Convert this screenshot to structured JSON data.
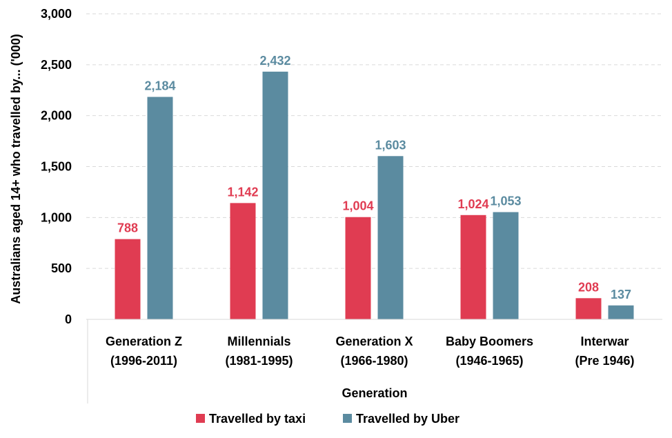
{
  "chart_data": {
    "type": "bar",
    "title": "",
    "xlabel": "Generation",
    "ylabel": "Australians aged 14+ who travelled by... ('000)",
    "ylim": [
      0,
      3000
    ],
    "yticks": [
      0,
      500,
      1000,
      1500,
      2000,
      2500,
      3000
    ],
    "ytick_labels": [
      "0",
      "500",
      "1,000",
      "1,500",
      "2,000",
      "2,500",
      "3,000"
    ],
    "grid": true,
    "legend_position": "bottom",
    "categories": [
      {
        "line1": "Generation Z",
        "line2": "(1996-2011)"
      },
      {
        "line1": "Millennials",
        "line2": "(1981-1995)"
      },
      {
        "line1": "Generation X",
        "line2": "(1966-1980)"
      },
      {
        "line1": "Baby Boomers",
        "line2": "(1946-1965)"
      },
      {
        "line1": "Interwar",
        "line2": "(Pre 1946)"
      }
    ],
    "series": [
      {
        "name": "Travelled by taxi",
        "color": "#e03c52",
        "values": [
          788,
          1142,
          1004,
          1024,
          208
        ],
        "labels": [
          "788",
          "1,142",
          "1,004",
          "1,024",
          "208"
        ]
      },
      {
        "name": "Travelled by Uber",
        "color": "#5b8ba0",
        "values": [
          2184,
          2432,
          1603,
          1053,
          137
        ],
        "labels": [
          "2,184",
          "2,432",
          "1,603",
          "1,053",
          "137"
        ]
      }
    ]
  }
}
